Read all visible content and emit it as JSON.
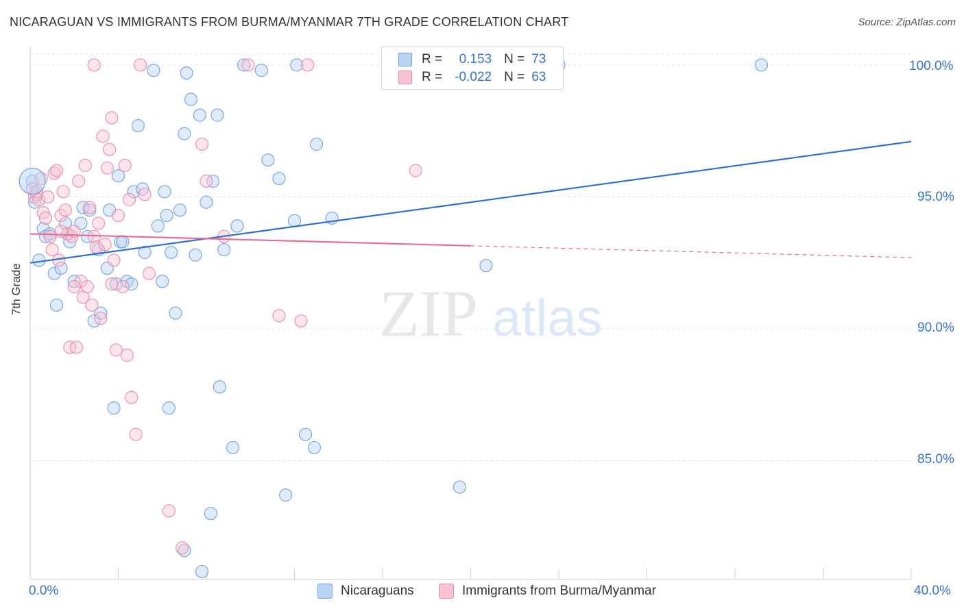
{
  "title": "NICARAGUAN VS IMMIGRANTS FROM BURMA/MYANMAR 7TH GRADE CORRELATION CHART",
  "source": "Source: ZipAtlas.com",
  "watermark": {
    "zip": "ZIP",
    "atlas": "atlas"
  },
  "legend": {
    "r_label": "R =",
    "n_label": "N =",
    "rows": [
      {
        "r": "0.153",
        "n": "73"
      },
      {
        "r": "-0.022",
        "n": "63"
      }
    ]
  },
  "colors": {
    "blue_fill": "#b9d3f5",
    "blue_stroke": "#6f9fdc",
    "blue_line": "#2f6fcc",
    "pink_fill": "#f8c3d3",
    "pink_stroke": "#e98aa8",
    "pink_line": "#e56d96",
    "tick_text": "#3a72c4",
    "grid": "#e3e3e3"
  },
  "chart_data": {
    "type": "scatter",
    "title": "NICARAGUAN VS IMMIGRANTS FROM BURMA/MYANMAR 7TH GRADE CORRELATION CHART",
    "xlabel": "",
    "ylabel": "7th Grade",
    "xlim": [
      0,
      40
    ],
    "ylim": [
      80.5,
      100.7
    ],
    "x_tick_labels": [
      "0.0%",
      "40.0%"
    ],
    "y_ticks": [
      85,
      90,
      95,
      100
    ],
    "y_tick_labels": [
      "85.0%",
      "90.0%",
      "95.0%",
      "100.0%"
    ],
    "grid": true,
    "legend_position": "top-center",
    "series": [
      {
        "name": "Nicaraguans",
        "color": "#6f9fdc",
        "r": 0.153,
        "n": 73,
        "trend": {
          "x": [
            0,
            40
          ],
          "y": [
            92.5,
            97.1
          ],
          "style": "solid"
        },
        "points": [
          [
            0.1,
            95.6
          ],
          [
            0.2,
            94.8
          ],
          [
            0.4,
            92.6
          ],
          [
            0.6,
            93.8
          ],
          [
            0.7,
            93.5
          ],
          [
            0.9,
            93.6
          ],
          [
            1.1,
            92.1
          ],
          [
            1.2,
            90.9
          ],
          [
            1.4,
            92.3
          ],
          [
            1.6,
            94.0
          ],
          [
            1.8,
            93.3
          ],
          [
            2.0,
            91.8
          ],
          [
            2.3,
            94.0
          ],
          [
            2.4,
            94.6
          ],
          [
            2.6,
            93.5
          ],
          [
            2.7,
            94.5
          ],
          [
            2.9,
            90.3
          ],
          [
            3.1,
            93.0
          ],
          [
            3.2,
            90.6
          ],
          [
            3.5,
            92.3
          ],
          [
            3.6,
            94.5
          ],
          [
            3.8,
            87.0
          ],
          [
            3.9,
            91.7
          ],
          [
            4.0,
            95.8
          ],
          [
            4.1,
            93.3
          ],
          [
            4.2,
            93.3
          ],
          [
            4.4,
            91.8
          ],
          [
            4.6,
            91.7
          ],
          [
            4.7,
            95.2
          ],
          [
            4.9,
            97.7
          ],
          [
            5.1,
            95.3
          ],
          [
            5.2,
            92.9
          ],
          [
            5.6,
            99.8
          ],
          [
            5.8,
            93.9
          ],
          [
            6.0,
            91.8
          ],
          [
            6.1,
            95.2
          ],
          [
            6.2,
            94.3
          ],
          [
            6.3,
            87.0
          ],
          [
            6.4,
            92.9
          ],
          [
            6.6,
            90.6
          ],
          [
            6.8,
            94.5
          ],
          [
            7.0,
            81.6
          ],
          [
            7.0,
            97.4
          ],
          [
            7.1,
            99.7
          ],
          [
            7.3,
            98.7
          ],
          [
            7.5,
            92.8
          ],
          [
            7.7,
            98.1
          ],
          [
            7.8,
            80.8
          ],
          [
            8.0,
            94.8
          ],
          [
            8.2,
            83.0
          ],
          [
            8.3,
            95.6
          ],
          [
            8.5,
            98.1
          ],
          [
            8.6,
            87.8
          ],
          [
            8.8,
            93.0
          ],
          [
            9.2,
            85.5
          ],
          [
            9.4,
            93.9
          ],
          [
            9.7,
            100.0
          ],
          [
            10.5,
            99.8
          ],
          [
            10.8,
            96.4
          ],
          [
            11.3,
            95.7
          ],
          [
            11.6,
            83.7
          ],
          [
            12.0,
            94.1
          ],
          [
            12.1,
            100.0
          ],
          [
            12.5,
            86.0
          ],
          [
            12.9,
            85.5
          ],
          [
            13.0,
            97.0
          ],
          [
            13.7,
            94.2
          ],
          [
            19.5,
            84.0
          ],
          [
            20.7,
            92.4
          ],
          [
            24.0,
            100.0
          ],
          [
            33.2,
            100.0
          ],
          [
            0.3,
            95.1
          ],
          [
            1.7,
            93.6
          ]
        ]
      },
      {
        "name": "Immigrants from Burma/Myanmar",
        "color": "#e98aa8",
        "r": -0.022,
        "n": 63,
        "trend": {
          "x": [
            0,
            40
          ],
          "y": [
            93.6,
            92.7
          ],
          "solid_to_x": 20,
          "style": "solid-then-dashed"
        },
        "points": [
          [
            0.1,
            95.3
          ],
          [
            0.2,
            95.0
          ],
          [
            0.3,
            95.2
          ],
          [
            0.4,
            94.9
          ],
          [
            0.5,
            95.7
          ],
          [
            0.6,
            94.4
          ],
          [
            0.7,
            94.2
          ],
          [
            0.9,
            93.5
          ],
          [
            1.0,
            93.0
          ],
          [
            1.1,
            95.9
          ],
          [
            1.2,
            96.0
          ],
          [
            1.3,
            92.6
          ],
          [
            1.4,
            94.3
          ],
          [
            1.5,
            95.2
          ],
          [
            1.6,
            94.5
          ],
          [
            1.7,
            93.6
          ],
          [
            1.8,
            89.3
          ],
          [
            1.9,
            93.5
          ],
          [
            2.0,
            93.7
          ],
          [
            2.1,
            89.3
          ],
          [
            2.2,
            95.6
          ],
          [
            2.3,
            91.8
          ],
          [
            2.4,
            91.2
          ],
          [
            2.5,
            96.2
          ],
          [
            2.6,
            91.6
          ],
          [
            2.7,
            94.6
          ],
          [
            2.8,
            90.9
          ],
          [
            2.9,
            93.5
          ],
          [
            3.0,
            93.1
          ],
          [
            3.1,
            94.0
          ],
          [
            3.2,
            90.4
          ],
          [
            3.3,
            97.3
          ],
          [
            3.4,
            93.2
          ],
          [
            3.5,
            96.1
          ],
          [
            3.6,
            96.8
          ],
          [
            3.7,
            98.0
          ],
          [
            3.8,
            92.6
          ],
          [
            3.9,
            89.2
          ],
          [
            4.0,
            94.3
          ],
          [
            4.2,
            91.6
          ],
          [
            4.3,
            96.2
          ],
          [
            4.4,
            89.0
          ],
          [
            4.5,
            94.9
          ],
          [
            4.6,
            87.4
          ],
          [
            4.8,
            86.0
          ],
          [
            5.0,
            100.0
          ],
          [
            5.2,
            95.1
          ],
          [
            5.4,
            92.1
          ],
          [
            6.3,
            83.1
          ],
          [
            6.9,
            81.7
          ],
          [
            7.8,
            97.0
          ],
          [
            8.0,
            95.6
          ],
          [
            8.8,
            93.5
          ],
          [
            9.9,
            100.0
          ],
          [
            11.3,
            90.5
          ],
          [
            12.3,
            90.3
          ],
          [
            12.6,
            100.0
          ],
          [
            17.5,
            96.0
          ],
          [
            2.9,
            100.0
          ],
          [
            1.4,
            93.7
          ],
          [
            3.7,
            91.7
          ],
          [
            0.8,
            95.0
          ],
          [
            2.0,
            91.6
          ]
        ]
      }
    ]
  },
  "bottom_legend": [
    "Nicaraguans",
    "Immigrants from Burma/Myanmar"
  ]
}
